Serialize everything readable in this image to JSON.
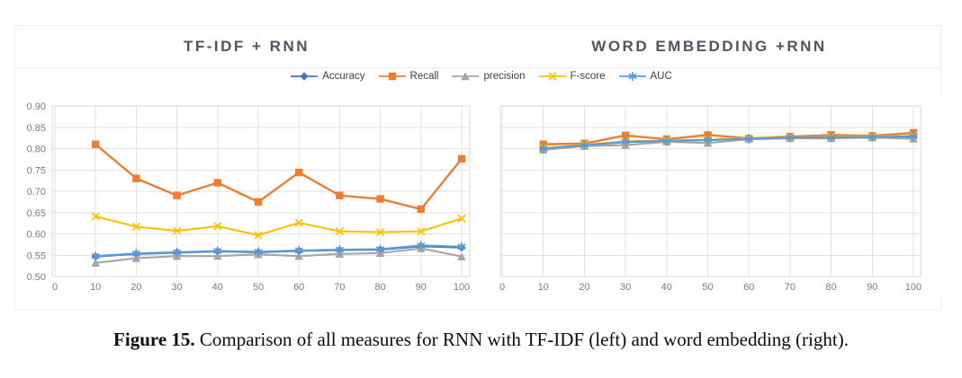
{
  "caption": {
    "label": "Figure 15.",
    "text": "Comparison of all measures for RNN with TF-IDF (left) and word embedding (right)."
  },
  "colors": {
    "accuracy": "#4472C4",
    "recall": "#ED7D31",
    "precision": "#A5A5A5",
    "f_score": "#FFC000",
    "auc": "#5B9BD5",
    "title_text": "#4d5661",
    "axis_text": "#7b7b7b",
    "gridline": "#e2e2e2"
  },
  "chart_data": [
    {
      "type": "line",
      "title": "TF-IDF + RNN",
      "xlabel": "",
      "ylabel": "",
      "xlim": [
        0,
        100
      ],
      "ylim": [
        0.5,
        0.9
      ],
      "x_ticks": [
        0,
        10,
        20,
        30,
        40,
        50,
        60,
        70,
        80,
        90,
        100
      ],
      "y_ticks": [
        0.5,
        0.55,
        0.6,
        0.65,
        0.7,
        0.75,
        0.8,
        0.85,
        0.9
      ],
      "grid": true,
      "legend_position": "top-center-shared",
      "x": [
        10,
        20,
        30,
        40,
        50,
        60,
        70,
        80,
        90,
        100
      ],
      "series": [
        {
          "name": "Accuracy",
          "color": "#4472C4",
          "marker": "diamond",
          "values": [
            0.547,
            0.553,
            0.556,
            0.559,
            0.557,
            0.56,
            0.562,
            0.563,
            0.571,
            0.568
          ]
        },
        {
          "name": "Recall",
          "color": "#ED7D31",
          "marker": "square",
          "values": [
            0.81,
            0.73,
            0.69,
            0.72,
            0.675,
            0.744,
            0.69,
            0.682,
            0.658,
            0.776
          ]
        },
        {
          "name": "precision",
          "color": "#A5A5A5",
          "marker": "triangle",
          "values": [
            0.532,
            0.543,
            0.548,
            0.548,
            0.552,
            0.548,
            0.553,
            0.555,
            0.566,
            0.547
          ]
        },
        {
          "name": "F-score",
          "color": "#FFC000",
          "marker": "x",
          "values": [
            0.641,
            0.617,
            0.607,
            0.618,
            0.597,
            0.626,
            0.606,
            0.604,
            0.606,
            0.636
          ]
        },
        {
          "name": "AUC",
          "color": "#5B9BD5",
          "marker": "asterisk",
          "values": [
            0.548,
            0.554,
            0.557,
            0.56,
            0.558,
            0.561,
            0.563,
            0.564,
            0.573,
            0.57
          ]
        }
      ]
    },
    {
      "type": "line",
      "title": "WORD EMBEDDING +RNN",
      "xlabel": "",
      "ylabel": "",
      "xlim": [
        0,
        100
      ],
      "ylim": [
        0.5,
        0.9
      ],
      "x_ticks": [
        0,
        10,
        20,
        30,
        40,
        50,
        60,
        70,
        80,
        90,
        100
      ],
      "y_ticks": [
        0.5,
        0.55,
        0.6,
        0.65,
        0.7,
        0.75,
        0.8,
        0.85,
        0.9
      ],
      "grid": true,
      "show_y_labels": false,
      "legend_position": "top-center-shared",
      "x": [
        10,
        20,
        30,
        40,
        50,
        60,
        70,
        80,
        90,
        100
      ],
      "series": [
        {
          "name": "Accuracy",
          "color": "#4472C4",
          "marker": "diamond",
          "values": [
            0.8,
            0.808,
            0.815,
            0.818,
            0.82,
            0.823,
            0.826,
            0.826,
            0.827,
            0.828
          ]
        },
        {
          "name": "Recall",
          "color": "#ED7D31",
          "marker": "square",
          "values": [
            0.81,
            0.812,
            0.831,
            0.822,
            0.832,
            0.824,
            0.828,
            0.832,
            0.83,
            0.837
          ]
        },
        {
          "name": "precision",
          "color": "#A5A5A5",
          "marker": "triangle",
          "values": [
            0.797,
            0.806,
            0.808,
            0.816,
            0.813,
            0.822,
            0.824,
            0.824,
            0.826,
            0.823
          ]
        },
        {
          "name": "F-score",
          "color": "#FFC000",
          "marker": "x",
          "values": [
            0.801,
            0.809,
            0.817,
            0.819,
            0.821,
            0.824,
            0.826,
            0.827,
            0.828,
            0.83
          ]
        },
        {
          "name": "AUC",
          "color": "#5B9BD5",
          "marker": "asterisk",
          "values": [
            0.8,
            0.808,
            0.816,
            0.818,
            0.82,
            0.823,
            0.826,
            0.826,
            0.827,
            0.829
          ]
        }
      ]
    }
  ]
}
